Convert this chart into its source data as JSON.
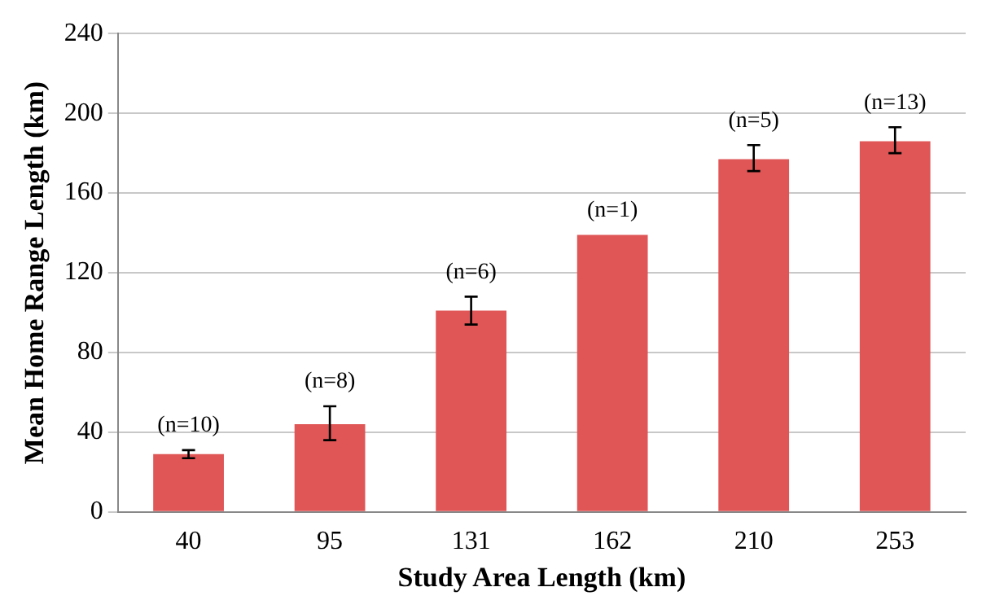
{
  "chart_data": {
    "type": "bar",
    "xlabel": "Study Area Length (km)",
    "ylabel": "Mean Home Range Length (km)",
    "categories": [
      "40",
      "95",
      "131",
      "162",
      "210",
      "253"
    ],
    "values": [
      29,
      44,
      101,
      139,
      177,
      186
    ],
    "errors": [
      [
        27,
        31
      ],
      [
        36,
        53
      ],
      [
        94,
        108
      ],
      null,
      [
        171,
        184
      ],
      [
        180,
        193
      ]
    ],
    "color": "#e05656",
    "ylim": [
      0,
      240
    ],
    "yticks": [
      0,
      40,
      80,
      120,
      160,
      200,
      240
    ],
    "grid": "y",
    "annotations": [
      {
        "text": "(n=10)",
        "x": "40",
        "y": 31
      },
      {
        "text": "(n=8)",
        "x": "95",
        "y": 53
      },
      {
        "text": "(n=6)",
        "x": "131",
        "y": 108
      },
      {
        "text": "(n=1)",
        "x": "162",
        "y": 139
      },
      {
        "text": "(n=5)",
        "x": "210",
        "y": 184
      },
      {
        "text": "(n=13)",
        "x": "253",
        "y": 193
      }
    ]
  }
}
